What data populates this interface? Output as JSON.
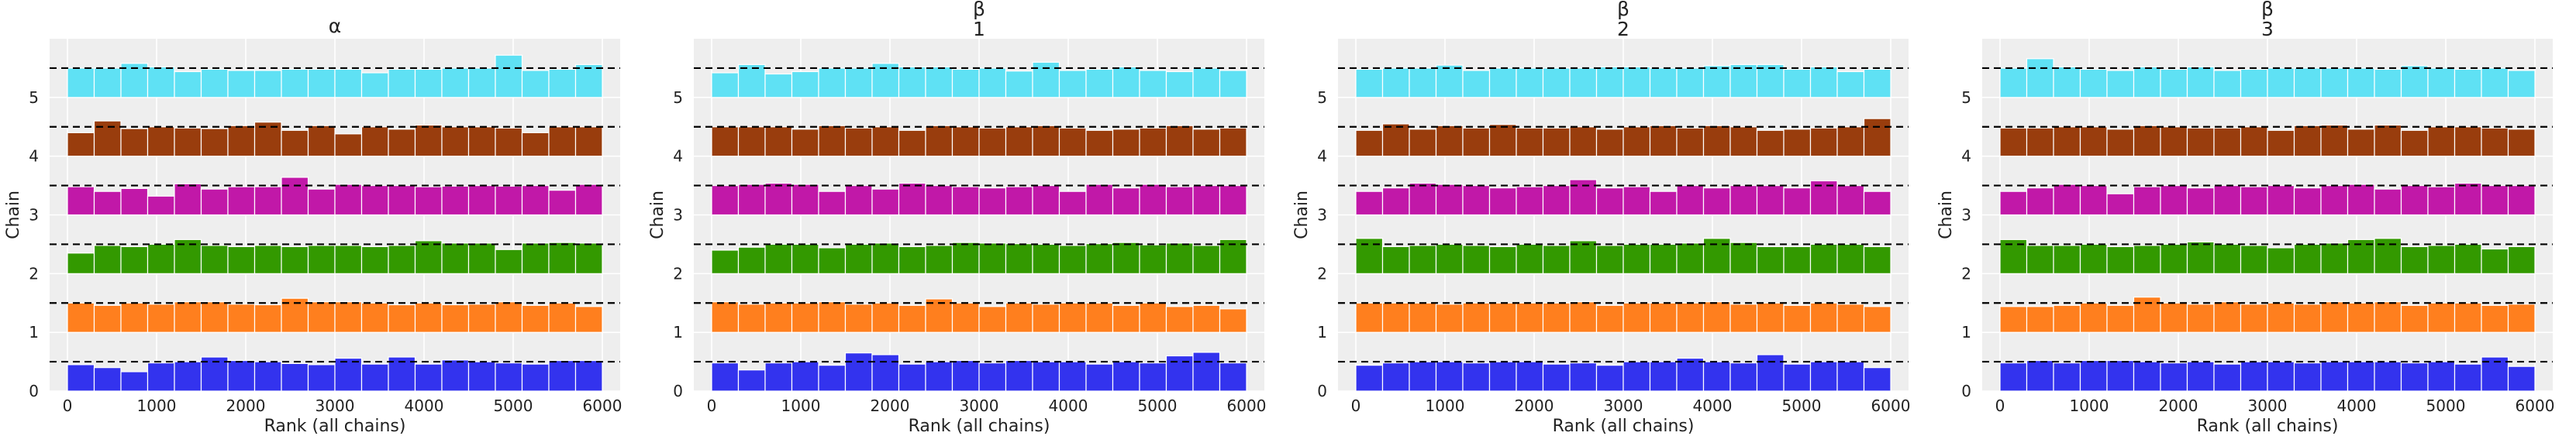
{
  "chart_data": {
    "type": "bar",
    "subtype": "rank-plot",
    "xlabel": "Rank (all chains)",
    "ylabel": "Chain",
    "xticks": [
      0,
      1000,
      2000,
      3000,
      4000,
      5000,
      6000
    ],
    "yticks": [
      0,
      1,
      2,
      3,
      4,
      5
    ],
    "xlim": [
      -200,
      6200
    ],
    "ylim": [
      0,
      6
    ],
    "grid": true,
    "reference_line": "dashed",
    "bins": [
      0,
      300,
      600,
      900,
      1200,
      1500,
      1800,
      2100,
      2400,
      2700,
      3000,
      3300,
      3600,
      3900,
      4200,
      4500,
      4800,
      5100,
      5400,
      5700,
      6000
    ],
    "series_colors": [
      "#3333ee",
      "#ff7f1e",
      "#339900",
      "#c118a8",
      "#993d0d",
      "#5fe1f4"
    ],
    "panels": [
      {
        "title_lines": [
          "α"
        ],
        "chains": [
          [
            0.45,
            0.4,
            0.33,
            0.48,
            0.5,
            0.58,
            0.52,
            0.5,
            0.47,
            0.45,
            0.56,
            0.46,
            0.58,
            0.46,
            0.53,
            0.5,
            0.48,
            0.46,
            0.52,
            0.52
          ],
          [
            0.5,
            0.46,
            0.5,
            0.48,
            0.52,
            0.52,
            0.48,
            0.47,
            0.58,
            0.52,
            0.52,
            0.5,
            0.47,
            0.5,
            0.47,
            0.48,
            0.52,
            0.46,
            0.5,
            0.44
          ],
          [
            0.35,
            0.48,
            0.46,
            0.5,
            0.58,
            0.48,
            0.46,
            0.48,
            0.46,
            0.48,
            0.48,
            0.46,
            0.48,
            0.56,
            0.52,
            0.52,
            0.41,
            0.52,
            0.53,
            0.52
          ],
          [
            0.48,
            0.4,
            0.45,
            0.32,
            0.53,
            0.44,
            0.48,
            0.48,
            0.64,
            0.44,
            0.52,
            0.5,
            0.5,
            0.48,
            0.49,
            0.5,
            0.49,
            0.5,
            0.42,
            0.52
          ],
          [
            0.4,
            0.6,
            0.47,
            0.5,
            0.48,
            0.47,
            0.52,
            0.58,
            0.44,
            0.52,
            0.38,
            0.5,
            0.46,
            0.53,
            0.5,
            0.5,
            0.48,
            0.4,
            0.5,
            0.5
          ],
          [
            0.5,
            0.5,
            0.58,
            0.52,
            0.44,
            0.48,
            0.46,
            0.46,
            0.48,
            0.48,
            0.48,
            0.42,
            0.48,
            0.48,
            0.5,
            0.5,
            0.72,
            0.46,
            0.48,
            0.56
          ]
        ]
      },
      {
        "title_lines": [
          "β",
          "1"
        ],
        "chains": [
          [
            0.48,
            0.36,
            0.48,
            0.5,
            0.44,
            0.65,
            0.62,
            0.46,
            0.5,
            0.52,
            0.48,
            0.52,
            0.5,
            0.5,
            0.46,
            0.5,
            0.48,
            0.6,
            0.66,
            0.48
          ],
          [
            0.52,
            0.48,
            0.5,
            0.5,
            0.52,
            0.48,
            0.5,
            0.46,
            0.57,
            0.5,
            0.44,
            0.5,
            0.48,
            0.5,
            0.5,
            0.46,
            0.5,
            0.44,
            0.46,
            0.4
          ],
          [
            0.4,
            0.45,
            0.5,
            0.5,
            0.44,
            0.5,
            0.52,
            0.46,
            0.48,
            0.53,
            0.52,
            0.51,
            0.5,
            0.48,
            0.51,
            0.53,
            0.49,
            0.52,
            0.48,
            0.58
          ],
          [
            0.5,
            0.52,
            0.54,
            0.52,
            0.4,
            0.5,
            0.44,
            0.54,
            0.5,
            0.48,
            0.46,
            0.48,
            0.5,
            0.4,
            0.52,
            0.46,
            0.52,
            0.48,
            0.5,
            0.5
          ],
          [
            0.5,
            0.5,
            0.5,
            0.46,
            0.52,
            0.48,
            0.5,
            0.44,
            0.52,
            0.5,
            0.48,
            0.5,
            0.52,
            0.48,
            0.44,
            0.46,
            0.48,
            0.52,
            0.46,
            0.48
          ],
          [
            0.42,
            0.56,
            0.4,
            0.44,
            0.5,
            0.5,
            0.58,
            0.52,
            0.52,
            0.48,
            0.5,
            0.45,
            0.6,
            0.46,
            0.48,
            0.52,
            0.46,
            0.44,
            0.5,
            0.46
          ]
        ]
      },
      {
        "title_lines": [
          "β",
          "2"
        ],
        "chains": [
          [
            0.44,
            0.48,
            0.5,
            0.5,
            0.48,
            0.5,
            0.5,
            0.46,
            0.48,
            0.44,
            0.5,
            0.5,
            0.56,
            0.5,
            0.48,
            0.62,
            0.46,
            0.5,
            0.5,
            0.4
          ],
          [
            0.5,
            0.5,
            0.5,
            0.48,
            0.5,
            0.5,
            0.5,
            0.5,
            0.52,
            0.46,
            0.5,
            0.5,
            0.5,
            0.52,
            0.48,
            0.5,
            0.46,
            0.5,
            0.48,
            0.44
          ],
          [
            0.6,
            0.46,
            0.48,
            0.5,
            0.48,
            0.46,
            0.5,
            0.48,
            0.56,
            0.48,
            0.5,
            0.5,
            0.52,
            0.6,
            0.53,
            0.46,
            0.46,
            0.5,
            0.5,
            0.46
          ],
          [
            0.4,
            0.46,
            0.54,
            0.52,
            0.5,
            0.46,
            0.48,
            0.5,
            0.6,
            0.46,
            0.48,
            0.4,
            0.5,
            0.46,
            0.5,
            0.5,
            0.46,
            0.58,
            0.5,
            0.4
          ],
          [
            0.44,
            0.55,
            0.46,
            0.52,
            0.48,
            0.54,
            0.48,
            0.48,
            0.5,
            0.46,
            0.5,
            0.52,
            0.48,
            0.52,
            0.5,
            0.44,
            0.46,
            0.48,
            0.5,
            0.64
          ],
          [
            0.48,
            0.5,
            0.5,
            0.55,
            0.46,
            0.5,
            0.5,
            0.5,
            0.5,
            0.52,
            0.52,
            0.5,
            0.5,
            0.54,
            0.56,
            0.56,
            0.48,
            0.52,
            0.44,
            0.48
          ]
        ]
      },
      {
        "title_lines": [
          "β",
          "3"
        ],
        "chains": [
          [
            0.48,
            0.52,
            0.48,
            0.52,
            0.52,
            0.5,
            0.48,
            0.5,
            0.46,
            0.5,
            0.5,
            0.48,
            0.5,
            0.5,
            0.5,
            0.48,
            0.5,
            0.46,
            0.58,
            0.42
          ],
          [
            0.44,
            0.44,
            0.46,
            0.5,
            0.46,
            0.6,
            0.5,
            0.48,
            0.52,
            0.48,
            0.5,
            0.48,
            0.52,
            0.5,
            0.52,
            0.46,
            0.5,
            0.5,
            0.46,
            0.48
          ],
          [
            0.58,
            0.48,
            0.48,
            0.5,
            0.46,
            0.48,
            0.5,
            0.54,
            0.5,
            0.48,
            0.44,
            0.5,
            0.52,
            0.58,
            0.6,
            0.46,
            0.48,
            0.5,
            0.42,
            0.46
          ],
          [
            0.4,
            0.46,
            0.52,
            0.5,
            0.36,
            0.48,
            0.5,
            0.46,
            0.5,
            0.48,
            0.5,
            0.46,
            0.5,
            0.52,
            0.44,
            0.5,
            0.48,
            0.54,
            0.5,
            0.5
          ],
          [
            0.48,
            0.48,
            0.5,
            0.5,
            0.46,
            0.52,
            0.5,
            0.48,
            0.48,
            0.5,
            0.44,
            0.52,
            0.53,
            0.46,
            0.53,
            0.44,
            0.5,
            0.5,
            0.48,
            0.46
          ],
          [
            0.5,
            0.66,
            0.52,
            0.48,
            0.46,
            0.52,
            0.48,
            0.52,
            0.46,
            0.48,
            0.5,
            0.5,
            0.5,
            0.5,
            0.48,
            0.54,
            0.5,
            0.48,
            0.5,
            0.46
          ]
        ]
      }
    ]
  }
}
